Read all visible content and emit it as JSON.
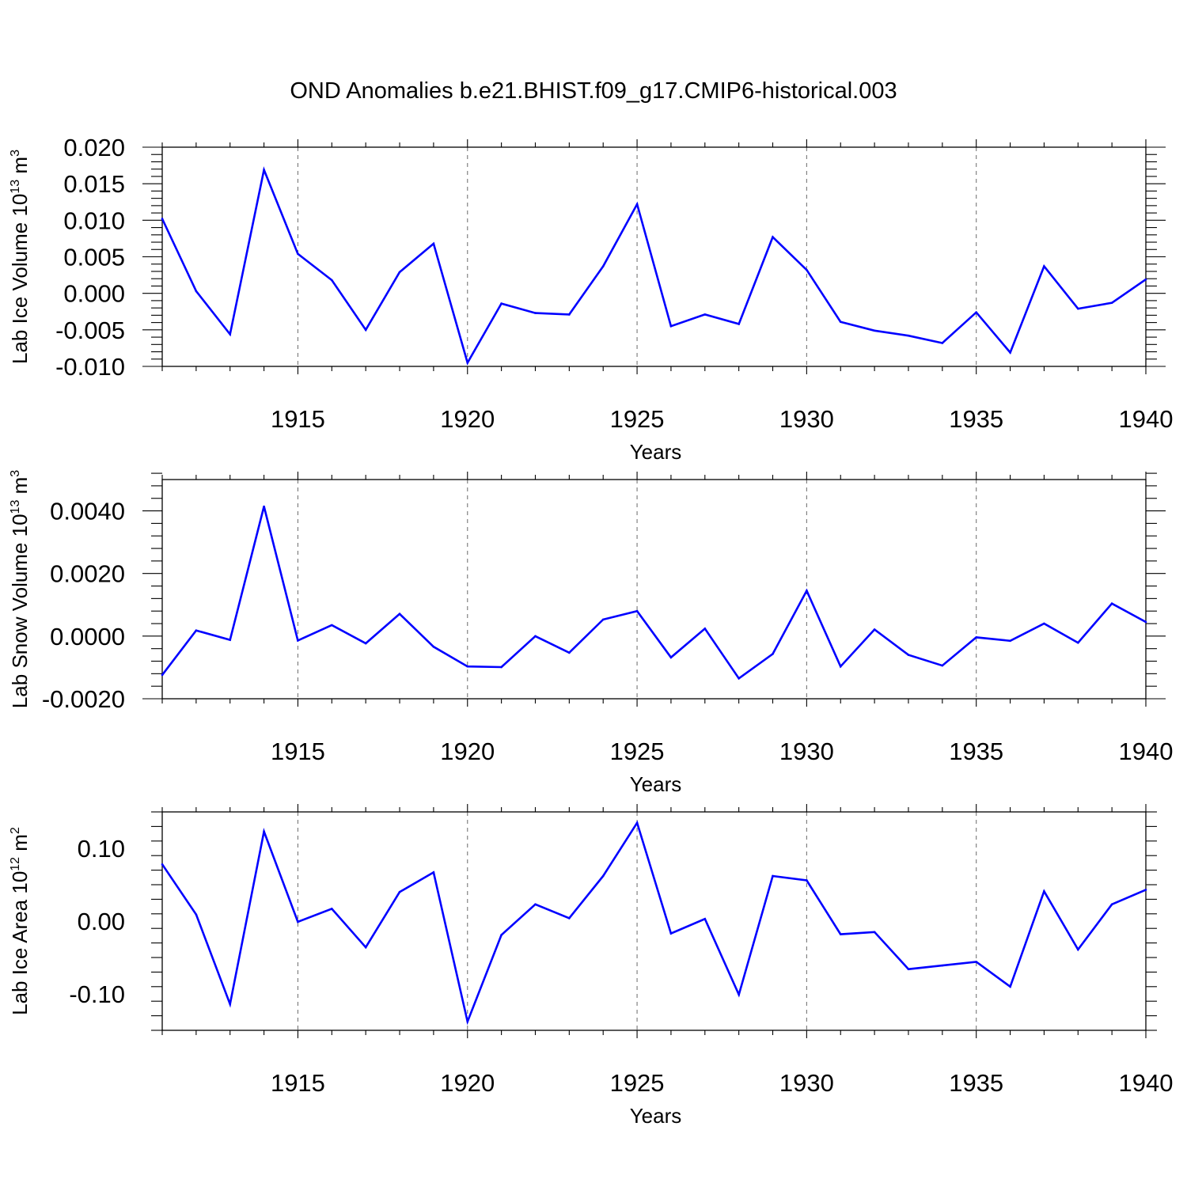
{
  "title": "OND Anomalies b.e21.BHIST.f09_g17.CMIP6-historical.003",
  "colors": {
    "series": "#0000ff",
    "frame": "#000000",
    "grid": "#777777"
  },
  "chart_data": [
    {
      "type": "line",
      "xlabel": "Years",
      "ylabel": {
        "text": "Lab Ice Volume 10",
        "exp": "13",
        "unit": " m",
        "unit_exp": "3"
      },
      "xlim": [
        1911,
        1940
      ],
      "ylim": [
        -0.01,
        0.02
      ],
      "xticks": [
        1915,
        1920,
        1925,
        1930,
        1935,
        1940
      ],
      "yticks": [
        -0.01,
        -0.005,
        0.0,
        0.005,
        0.01,
        0.015,
        0.02
      ],
      "ytick_labels": [
        "-0.010",
        "-0.005",
        "0.000",
        "0.005",
        "0.010",
        "0.015",
        "0.020"
      ],
      "grid": "vertical dashed at major x ticks",
      "x": [
        1911,
        1912,
        1913,
        1914,
        1915,
        1916,
        1917,
        1918,
        1919,
        1920,
        1921,
        1922,
        1923,
        1924,
        1925,
        1926,
        1927,
        1928,
        1929,
        1930,
        1931,
        1932,
        1933,
        1934,
        1935,
        1936,
        1937,
        1938,
        1939,
        1940
      ],
      "values": [
        0.0102,
        0.0003,
        -0.0056,
        0.0169,
        0.0054,
        0.0018,
        -0.005,
        0.0029,
        0.0068,
        -0.0095,
        -0.0014,
        -0.0027,
        -0.0029,
        0.0037,
        0.0122,
        -0.0045,
        -0.0029,
        -0.0042,
        0.0077,
        0.0032,
        -0.0039,
        -0.0051,
        -0.0058,
        -0.0068,
        -0.0026,
        -0.0081,
        0.0037,
        -0.0021,
        -0.0013,
        0.0019
      ]
    },
    {
      "type": "line",
      "xlabel": "Years",
      "ylabel": {
        "text": "Lab Snow Volume 10",
        "exp": "13",
        "unit": " m",
        "unit_exp": "3"
      },
      "xlim": [
        1911,
        1940
      ],
      "ylim": [
        -0.002,
        0.005
      ],
      "xticks": [
        1915,
        1920,
        1925,
        1930,
        1935,
        1940
      ],
      "yticks": [
        -0.002,
        0.0,
        0.002,
        0.004
      ],
      "ytick_labels": [
        "-0.0020",
        "0.0000",
        "0.0020",
        "0.0040"
      ],
      "grid": "vertical dashed at major x ticks",
      "x": [
        1911,
        1912,
        1913,
        1914,
        1915,
        1916,
        1917,
        1918,
        1919,
        1920,
        1921,
        1922,
        1923,
        1924,
        1925,
        1926,
        1927,
        1928,
        1929,
        1930,
        1931,
        1932,
        1933,
        1934,
        1935,
        1936,
        1937,
        1938,
        1939,
        1940
      ],
      "values": [
        -0.00124,
        0.00018,
        -0.00012,
        0.00414,
        -0.00014,
        0.00035,
        -0.00023,
        0.00071,
        -0.00034,
        -0.00097,
        -0.00099,
        0.0,
        -0.00053,
        0.00053,
        0.0008,
        -0.00068,
        0.00024,
        -0.00135,
        -0.00057,
        0.00145,
        -0.00097,
        0.00021,
        -0.0006,
        -0.00094,
        -4e-05,
        -0.00015,
        0.0004,
        -0.00021,
        0.00104,
        0.00045
      ]
    },
    {
      "type": "line",
      "xlabel": "Years",
      "ylabel": {
        "text": "Lab Ice Area 10",
        "exp": "12",
        "unit": " m",
        "unit_exp": "2"
      },
      "xlim": [
        1911,
        1940
      ],
      "ylim": [
        -0.15,
        0.15
      ],
      "xticks": [
        1915,
        1920,
        1925,
        1930,
        1935,
        1940
      ],
      "yticks": [
        -0.1,
        0.0,
        0.1
      ],
      "ytick_labels": [
        "-0.10",
        "0.00",
        "0.10"
      ],
      "grid": "vertical dashed at major x ticks",
      "x": [
        1911,
        1912,
        1913,
        1914,
        1915,
        1916,
        1917,
        1918,
        1919,
        1920,
        1921,
        1922,
        1923,
        1924,
        1925,
        1926,
        1927,
        1928,
        1929,
        1930,
        1931,
        1932,
        1933,
        1934,
        1935,
        1936,
        1937,
        1938,
        1939,
        1940
      ],
      "values": [
        0.078,
        0.009,
        -0.114,
        0.123,
        -0.001,
        0.017,
        -0.036,
        0.04,
        0.067,
        -0.138,
        -0.019,
        0.023,
        0.004,
        0.062,
        0.135,
        -0.017,
        0.003,
        -0.101,
        0.062,
        0.056,
        -0.018,
        -0.015,
        -0.066,
        -0.061,
        -0.056,
        -0.09,
        0.041,
        -0.039,
        0.023,
        0.043
      ]
    }
  ]
}
